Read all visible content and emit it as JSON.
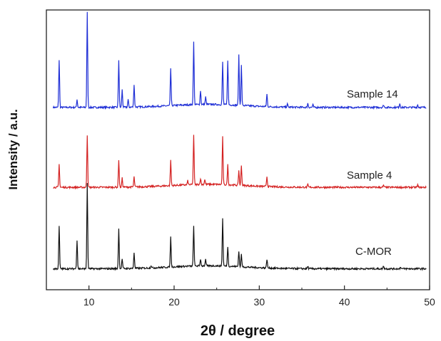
{
  "chart_data": {
    "type": "line",
    "title": "",
    "xlabel": "2θ / degree",
    "ylabel": "Intensity / a.u.",
    "xlim": [
      5,
      50
    ],
    "xticks": [
      "10",
      "20",
      "30",
      "40",
      "50"
    ],
    "grid": false,
    "legend": "none",
    "series": [
      {
        "name": "Sample 14",
        "color": "#1f2fd6",
        "baseline": 3.65,
        "peaks": [
          [
            6.5,
            0.95
          ],
          [
            8.6,
            0.16
          ],
          [
            9.8,
            1.9
          ],
          [
            13.5,
            0.95
          ],
          [
            13.9,
            0.35
          ],
          [
            14.6,
            0.15
          ],
          [
            15.3,
            0.45
          ],
          [
            19.6,
            0.75
          ],
          [
            22.3,
            1.25
          ],
          [
            23.1,
            0.28
          ],
          [
            23.7,
            0.15
          ],
          [
            25.7,
            0.85
          ],
          [
            26.3,
            0.9
          ],
          [
            27.6,
            1.0
          ],
          [
            27.9,
            0.8
          ],
          [
            30.9,
            0.25
          ],
          [
            33.3,
            0.06
          ],
          [
            35.7,
            0.08
          ],
          [
            36.3,
            0.05
          ],
          [
            44.6,
            0.05
          ],
          [
            46.5,
            0.08
          ],
          [
            48.6,
            0.05
          ]
        ]
      },
      {
        "name": "Sample 4",
        "color": "#d42222",
        "baseline": 2.05,
        "peaks": [
          [
            6.5,
            0.46
          ],
          [
            9.8,
            1.05
          ],
          [
            13.5,
            0.55
          ],
          [
            13.9,
            0.18
          ],
          [
            15.3,
            0.2
          ],
          [
            19.6,
            0.5
          ],
          [
            21.6,
            0.08
          ],
          [
            22.3,
            1.0
          ],
          [
            23.1,
            0.12
          ],
          [
            23.6,
            0.1
          ],
          [
            25.7,
            0.95
          ],
          [
            26.3,
            0.4
          ],
          [
            27.6,
            0.3
          ],
          [
            27.9,
            0.4
          ],
          [
            30.9,
            0.2
          ],
          [
            35.7,
            0.05
          ],
          [
            44.6,
            0.04
          ],
          [
            48.6,
            0.05
          ]
        ]
      },
      {
        "name": "C-MOR",
        "color": "#111111",
        "baseline": 0.42,
        "peaks": [
          [
            6.5,
            0.85
          ],
          [
            8.6,
            0.58
          ],
          [
            9.8,
            1.7
          ],
          [
            13.5,
            0.8
          ],
          [
            13.9,
            0.2
          ],
          [
            15.3,
            0.32
          ],
          [
            17.3,
            0.05
          ],
          [
            19.6,
            0.6
          ],
          [
            22.3,
            0.8
          ],
          [
            23.1,
            0.14
          ],
          [
            23.7,
            0.12
          ],
          [
            25.7,
            0.95
          ],
          [
            26.3,
            0.4
          ],
          [
            27.6,
            0.32
          ],
          [
            27.9,
            0.25
          ],
          [
            30.9,
            0.18
          ],
          [
            35.7,
            0.05
          ],
          [
            44.6,
            0.06
          ],
          [
            46.6,
            0.04
          ]
        ]
      }
    ]
  }
}
